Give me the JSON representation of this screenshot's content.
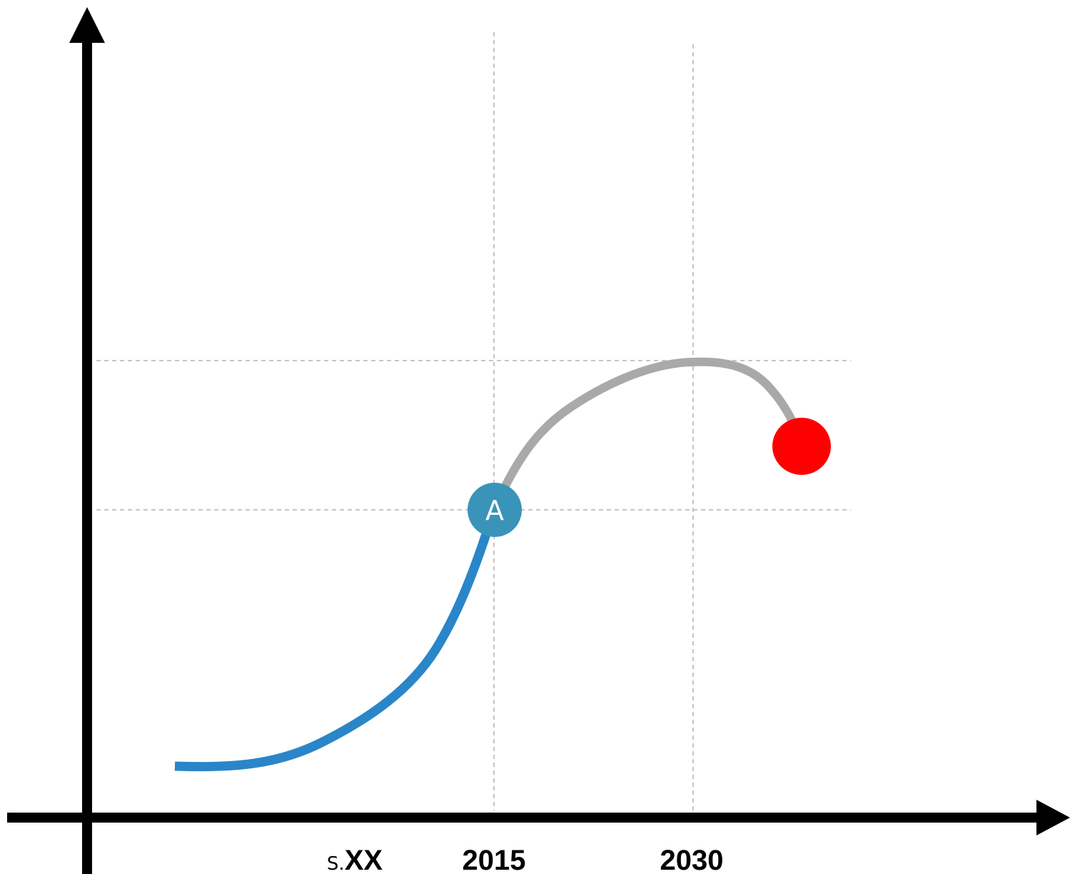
{
  "diagram": {
    "x_ticks": {
      "sxx_prefix": "S.",
      "sxx_main": "XX",
      "y2015": "2015",
      "y2030": "2030"
    },
    "marker_a": {
      "label": "A",
      "color": "#3a93b8",
      "text_color": "#ffffff"
    },
    "end_marker": {
      "color": "#ff0000"
    },
    "curves": {
      "past_color": "#2a86c8",
      "projection_color": "#a9a9a9"
    },
    "axis_color": "#000000",
    "guide_color": "#b3b3b3"
  }
}
